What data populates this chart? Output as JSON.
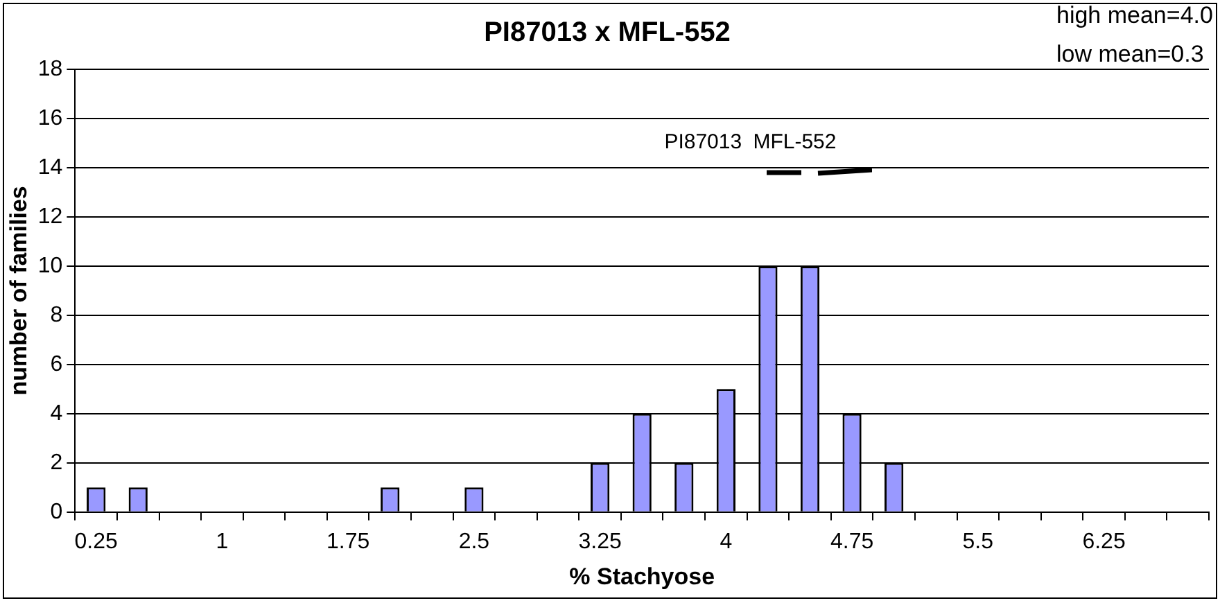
{
  "chart_data": {
    "type": "bar",
    "title": "PI87013 x MFL-552",
    "xlabel": "% Stachyose",
    "ylabel": "number of families",
    "categories": [
      "0.25",
      null,
      null,
      "1",
      null,
      null,
      "1.75",
      null,
      null,
      "2.5",
      null,
      null,
      "3.25",
      null,
      null,
      "4",
      null,
      null,
      "4.75",
      null,
      null,
      "5.5",
      null,
      null,
      "6.25",
      null,
      null
    ],
    "values": [
      1,
      1,
      0,
      0,
      0,
      0,
      0,
      1,
      0,
      1,
      0,
      0,
      2,
      4,
      2,
      5,
      10,
      10,
      4,
      2,
      0,
      0,
      0,
      0,
      0,
      0,
      0
    ],
    "color": "#9999ff",
    "ylim": [
      0,
      18
    ],
    "yticks": [
      0,
      2,
      4,
      6,
      8,
      10,
      12,
      14,
      16,
      18
    ],
    "grid": "y",
    "legend": false,
    "annotations": [
      "high mean=4.0",
      "low mean=0.3",
      "PI87013",
      "MFL-552"
    ]
  }
}
